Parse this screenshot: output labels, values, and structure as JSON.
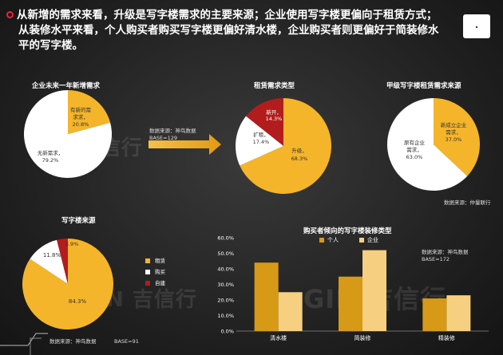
{
  "header": {
    "line1": "从新增的需求来看，升级是写字楼需求的主要来源；企业使用写字楼更偏向于租赁方式；",
    "line2": "从装修水平来看，个人购买者购买写字楼更偏好清水楼，企业购买者则更偏好于简装修水",
    "line3": "平的写字楼。"
  },
  "notes": {
    "mid_source": "数据来源：神鸟数据",
    "mid_base": "BASE=129",
    "top_right_source": "数据来源：仲量联行",
    "bottom_left_source": "数据来源：神鸟数据",
    "bottom_left_base": "BASE=91",
    "bar_source": "数据来源：神鸟数据",
    "bar_base": "BASE=172"
  },
  "watermark": {
    "text": "GIN 吉信行"
  },
  "colors": {
    "gold": "#f4b52a",
    "white": "#ffffff",
    "red": "#b31c1c",
    "dark_gold": "#d69a17",
    "light_gold": "#f7cf80"
  },
  "chart_data": [
    {
      "id": "pie1",
      "type": "pie",
      "title": "企业未来一年新增需求",
      "slices": [
        {
          "label": "有新的需求",
          "value": 20.8,
          "color": "#f4b52a"
        },
        {
          "label": "无新需求",
          "value": 79.2,
          "color": "#ffffff"
        }
      ]
    },
    {
      "id": "pie2",
      "type": "pie",
      "title": "租赁需求类型",
      "slices": [
        {
          "label": "新开",
          "value": 14.3,
          "color": "#b31c1c"
        },
        {
          "label": "扩租",
          "value": 17.4,
          "color": "#ffffff"
        },
        {
          "label": "升级",
          "value": 68.3,
          "color": "#f4b52a"
        }
      ]
    },
    {
      "id": "pie3",
      "type": "pie",
      "title": "甲级写字楼租赁需求来源",
      "slices": [
        {
          "label": "新成立企业需求",
          "value": 37.0,
          "color": "#f4b52a"
        },
        {
          "label": "原有企业需求",
          "value": 63.0,
          "color": "#ffffff"
        }
      ]
    },
    {
      "id": "pie4",
      "type": "pie",
      "title": "写字楼来源",
      "legend": [
        "租赁",
        "购买",
        "自建"
      ],
      "slices": [
        {
          "label": "租赁",
          "value": 84.3,
          "color": "#f4b52a"
        },
        {
          "label": "购买",
          "value": 11.8,
          "color": "#ffffff"
        },
        {
          "label": "自建",
          "value": 3.9,
          "color": "#b31c1c"
        }
      ]
    },
    {
      "id": "bar1",
      "type": "bar",
      "title": "购买者倾向的写字楼装修类型",
      "categories": [
        "清水楼",
        "简装修",
        "精装修"
      ],
      "series": [
        {
          "name": "个人",
          "values": [
            44,
            35,
            21
          ],
          "color": "#d69a17"
        },
        {
          "name": "企业",
          "values": [
            25,
            52,
            23
          ],
          "color": "#f7cf80"
        }
      ],
      "ylim": [
        0,
        60
      ],
      "yticks": [
        "0.0%",
        "10.0%",
        "20.0%",
        "30.0%",
        "40.0%",
        "50.0%",
        "60.0%"
      ],
      "legend_position": "top"
    }
  ]
}
